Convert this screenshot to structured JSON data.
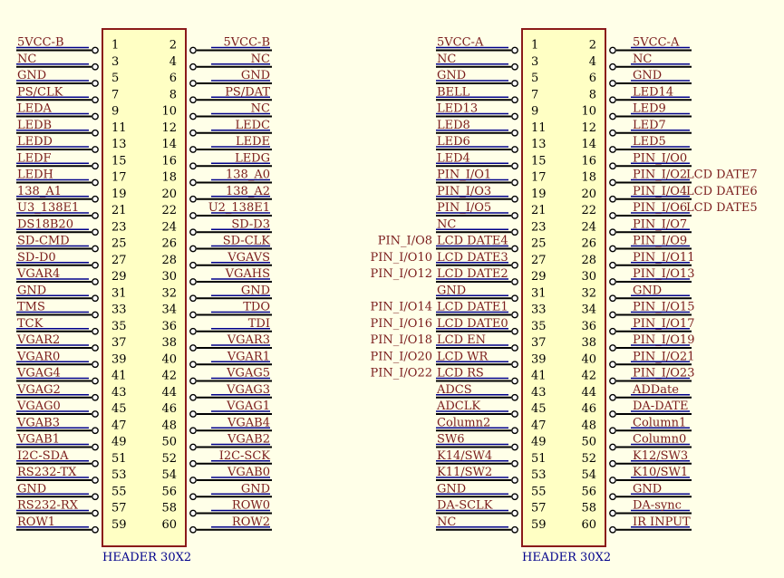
{
  "colors": {
    "background": "#ffffe8",
    "body_fill": "#ffffc4",
    "body_stroke": "#8b1a1a",
    "pin_line": "#000000",
    "label_text": "#7a1c1c",
    "net_line": "#00008b",
    "pin_number": "#000000",
    "title_text": "#00008b"
  },
  "connectors": [
    {
      "name": "HEADER 30X2",
      "left_labels": [
        "5VCC-B",
        "NC",
        "GND",
        "PS/CLK",
        "LEDA",
        "LEDB",
        "LEDD",
        "LEDF",
        "LEDH",
        "138_A1",
        "U3_138E1",
        "DS18B20",
        "SD-CMD",
        "SD-D0",
        "VGAR4",
        "GND",
        "TMS",
        "TCK",
        "VGAR2",
        "VGAR0",
        "VGAG4",
        "VGAG2",
        "VGAG0",
        "VGAB3",
        "VGAB1",
        "I2C-SDA",
        "RS232-TX",
        "GND",
        "RS232-RX",
        "ROW1"
      ],
      "right_labels": [
        "5VCC-B",
        "NC",
        "GND",
        "PS/DAT",
        "NC",
        "LEDC",
        "LEDE",
        "LEDG",
        "138_A0",
        "138_A2",
        "U2_138E1",
        "SD-D3",
        "SD-CLK",
        "VGAVS",
        "VGAHS",
        "GND",
        "TDO",
        "TDI",
        "VGAR3",
        "VGAR1",
        "VGAG5",
        "VGAG3",
        "VGAG1",
        "VGAB4",
        "VGAB2",
        "I2C-SCK",
        "VGAB0",
        "GND",
        "ROW0",
        "ROW2"
      ],
      "outer_left": [],
      "outer_right": []
    },
    {
      "name": "HEADER 30X2",
      "left_labels": [
        "5VCC-A",
        "NC",
        "GND",
        "BELL",
        "LED13",
        "LED8",
        "LED6",
        "LED4",
        "PIN_I/O1",
        "PIN_I/O3",
        "PIN_I/O5",
        "NC",
        "LCD DATE4",
        "LCD DATE3",
        "LCD DATE2",
        "GND",
        "LCD DATE1",
        "LCD DATE0",
        "LCD EN",
        "LCD WR",
        "LCD RS",
        "ADCS",
        "ADCLK",
        "Column2",
        "SW6",
        "K14/SW4",
        "K11/SW2",
        "GND",
        "DA-SCLK",
        "NC"
      ],
      "right_labels": [
        "5VCC-A",
        "NC",
        "GND",
        "LED14",
        "LED9",
        "LED7",
        "LED5",
        "PIN_I/O0",
        "PIN_I/O2",
        "PIN_I/O4",
        "PIN_I/O6",
        "PIN_I/O7",
        "PIN_I/O9",
        "PIN_I/O11",
        "PIN_I/O13",
        "GND",
        "PIN_I/O15",
        "PIN_I/O17",
        "PIN_I/O19",
        "PIN_I/O21",
        "PIN_I/O23",
        "ADDate",
        "DA-DATE",
        "Column1",
        "Column0",
        "K12/SW3",
        "K10/SW1",
        "GND",
        "DA-sync",
        "IR INPUT"
      ],
      "outer_left": [
        "",
        "",
        "",
        "",
        "",
        "",
        "",
        "",
        "",
        "",
        "",
        "",
        "PIN_I/O8",
        "PIN_I/O10",
        "PIN_I/O12",
        "",
        "PIN_I/O14",
        "PIN_I/O16",
        "PIN_I/O18",
        "PIN_I/O20",
        "PIN_I/O22",
        "",
        "",
        "",
        "",
        "",
        "",
        "",
        "",
        ""
      ],
      "outer_right": [
        "",
        "",
        "",
        "",
        "",
        "",
        "",
        "",
        "LCD DATE7",
        "LCD DATE6",
        "LCD DATE5",
        "",
        "",
        "",
        "",
        "",
        "",
        "",
        "",
        "",
        "",
        "",
        "",
        "",
        "",
        "",
        "",
        "",
        "",
        ""
      ]
    }
  ]
}
